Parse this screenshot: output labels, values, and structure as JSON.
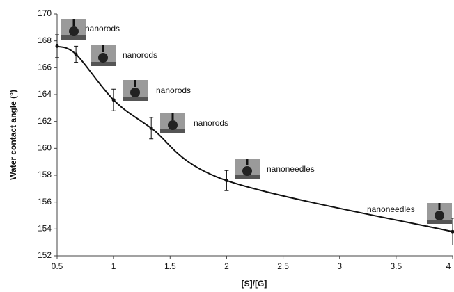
{
  "chart_data": {
    "type": "line",
    "xlabel": "[S]/[G]",
    "ylabel": "Water contact angle (°)",
    "x": [
      0.5,
      0.667,
      1,
      1.333,
      2,
      4
    ],
    "values": [
      167.6,
      167.0,
      163.6,
      161.5,
      157.6,
      153.8
    ],
    "errors": [
      0.85,
      0.6,
      0.8,
      0.8,
      0.75,
      1.0
    ],
    "color": "#111111",
    "xlim": [
      0.5,
      4
    ],
    "ylim": [
      152,
      170
    ],
    "xticks": [
      0.5,
      1,
      1.5,
      2,
      2.5,
      3,
      3.5,
      4
    ],
    "yticks": [
      152,
      154,
      156,
      158,
      160,
      162,
      164,
      166,
      168,
      170
    ],
    "annotations": [
      "nanorods",
      "nanorods",
      "nanorods",
      "nanorods",
      "nanoneedles",
      "nanoneedles"
    ]
  }
}
